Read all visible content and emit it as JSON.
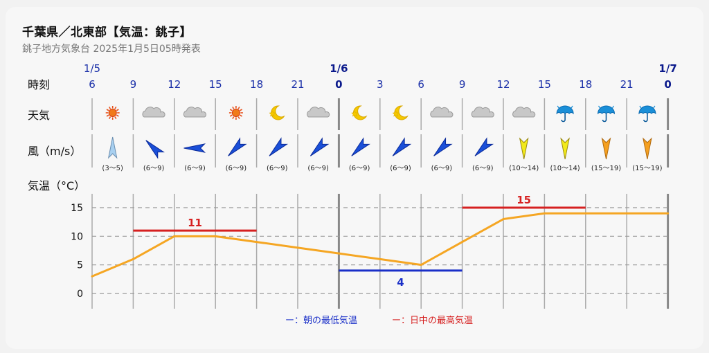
{
  "header": {
    "title": "千葉県／北東部【気温：銚子】",
    "subtitle": "銚子地方気象台 2025年1月5日05時発表"
  },
  "rows": {
    "time": "時刻",
    "weather": "天気",
    "wind": "風（m/s）",
    "temp": "気温（°C）"
  },
  "colors": {
    "low": "#1a2fc8",
    "high": "#d62020",
    "temp_line": "#f5a623",
    "day_text": "#1a2fa8"
  },
  "chart_data": {
    "type": "line",
    "x": [
      "1/5 6",
      "9",
      "12",
      "15",
      "18",
      "21",
      "1/6 0",
      "3",
      "6",
      "9",
      "12",
      "15",
      "18",
      "21",
      "1/7 0"
    ],
    "day_marks": [
      {
        "label": "1/5",
        "index": 0,
        "bold": false
      },
      {
        "label": "1/6",
        "index": 6,
        "bold": true
      },
      {
        "label": "1/7",
        "index": 14,
        "bold": true
      }
    ],
    "hour_labels": [
      "6",
      "9",
      "12",
      "15",
      "18",
      "21",
      "0",
      "3",
      "6",
      "9",
      "12",
      "15",
      "18",
      "21",
      "0"
    ],
    "series": [
      {
        "values": [
          3,
          6,
          10,
          10,
          9,
          8,
          7,
          6,
          5,
          9,
          13,
          14,
          14,
          14,
          14
        ]
      }
    ],
    "ylim": [
      -2,
      18
    ],
    "yticks": [
      0,
      5,
      10,
      15
    ],
    "grid": true,
    "weather": [
      "sun",
      "cloud",
      "cloud",
      "sun",
      "moon",
      "cloud",
      "moon",
      "moon",
      "cloud",
      "cloud",
      "cloud",
      "umbrella",
      "umbrella",
      "umbrella"
    ],
    "wind": [
      {
        "range": "(3～5)",
        "dir": "N",
        "color": "light-blue"
      },
      {
        "range": "(6～9)",
        "dir": "NW",
        "color": "blue"
      },
      {
        "range": "(6～9)",
        "dir": "W",
        "color": "blue"
      },
      {
        "range": "(6～9)",
        "dir": "SW",
        "color": "blue"
      },
      {
        "range": "(6～9)",
        "dir": "SW",
        "color": "blue"
      },
      {
        "range": "(6～9)",
        "dir": "SW",
        "color": "blue"
      },
      {
        "range": "(6～9)",
        "dir": "SW",
        "color": "blue"
      },
      {
        "range": "(6～9)",
        "dir": "SW",
        "color": "blue"
      },
      {
        "range": "(6～9)",
        "dir": "SW",
        "color": "blue"
      },
      {
        "range": "(6～9)",
        "dir": "SW",
        "color": "blue"
      },
      {
        "range": "(10～14)",
        "dir": "S",
        "color": "yellow"
      },
      {
        "range": "(10～14)",
        "dir": "S",
        "color": "yellow"
      },
      {
        "range": "(15～19)",
        "dir": "S",
        "color": "orange"
      },
      {
        "range": "(15～19)",
        "dir": "S",
        "color": "orange"
      }
    ],
    "min_temp": {
      "value": 4,
      "label": "4",
      "from_index": 6,
      "to_index": 9
    },
    "max_temp": [
      {
        "value": 11,
        "label": "11",
        "from_index": 1,
        "to_index": 4
      },
      {
        "value": 15,
        "label": "15",
        "from_index": 9,
        "to_index": 12
      }
    ]
  },
  "legend": {
    "low": "ー：朝の最低気温",
    "high": "ー：日中の最高気温"
  }
}
